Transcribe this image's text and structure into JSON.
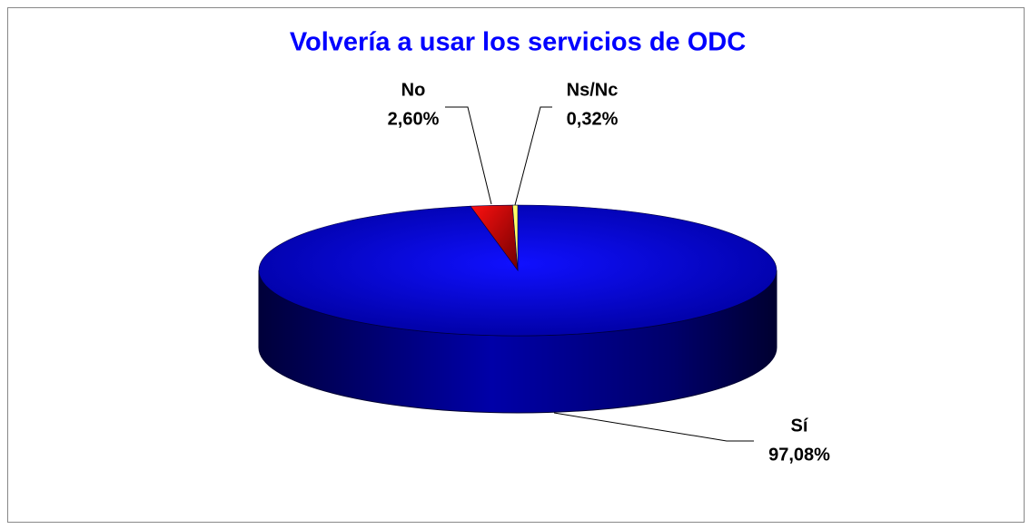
{
  "chart_data": {
    "type": "pie3d",
    "title": "Volvería a usar los servicios de ODC",
    "categories": [
      "Sí",
      "No",
      "Ns/Nc"
    ],
    "values": [
      97.08,
      2.6,
      0.32
    ],
    "value_labels": [
      "97,08%",
      "2,60%",
      "0,32%"
    ],
    "colors": [
      "#0000cc",
      "#cc0000",
      "#ffff66"
    ]
  }
}
